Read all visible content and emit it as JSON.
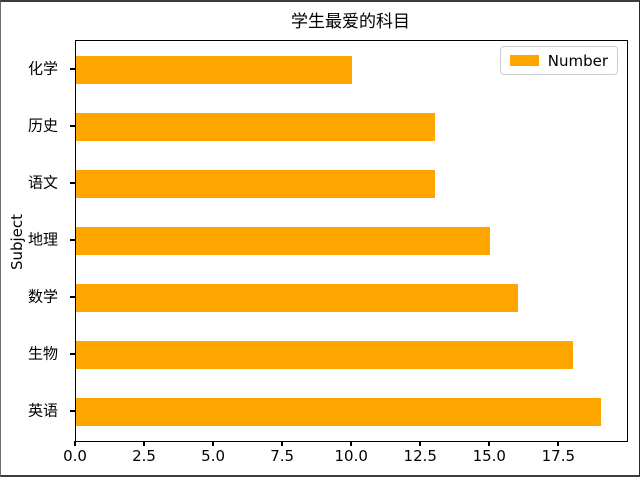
{
  "chart_data": {
    "type": "bar",
    "orientation": "horizontal",
    "title": "学生最爱的科目",
    "xlabel": "",
    "ylabel": "Subject",
    "order": "top-to-bottom",
    "categories": [
      "化学",
      "历史",
      "语文",
      "地理",
      "数学",
      "生物",
      "英语"
    ],
    "values": [
      10,
      13,
      13,
      15,
      16,
      18,
      19
    ],
    "series_name": "Number",
    "xlim": [
      0,
      19.95
    ],
    "xticks": [
      0,
      2.5,
      5,
      7.5,
      10,
      12.5,
      15,
      17.5
    ],
    "xtick_labels": [
      "0.0",
      "2.5",
      "5.0",
      "7.5",
      "10.0",
      "12.5",
      "15.0",
      "17.5"
    ],
    "bar_color": "#ffa500",
    "grid": false,
    "legend": {
      "position": "upper right",
      "entries": [
        {
          "label": "Number",
          "color": "#ffa500"
        }
      ]
    }
  }
}
